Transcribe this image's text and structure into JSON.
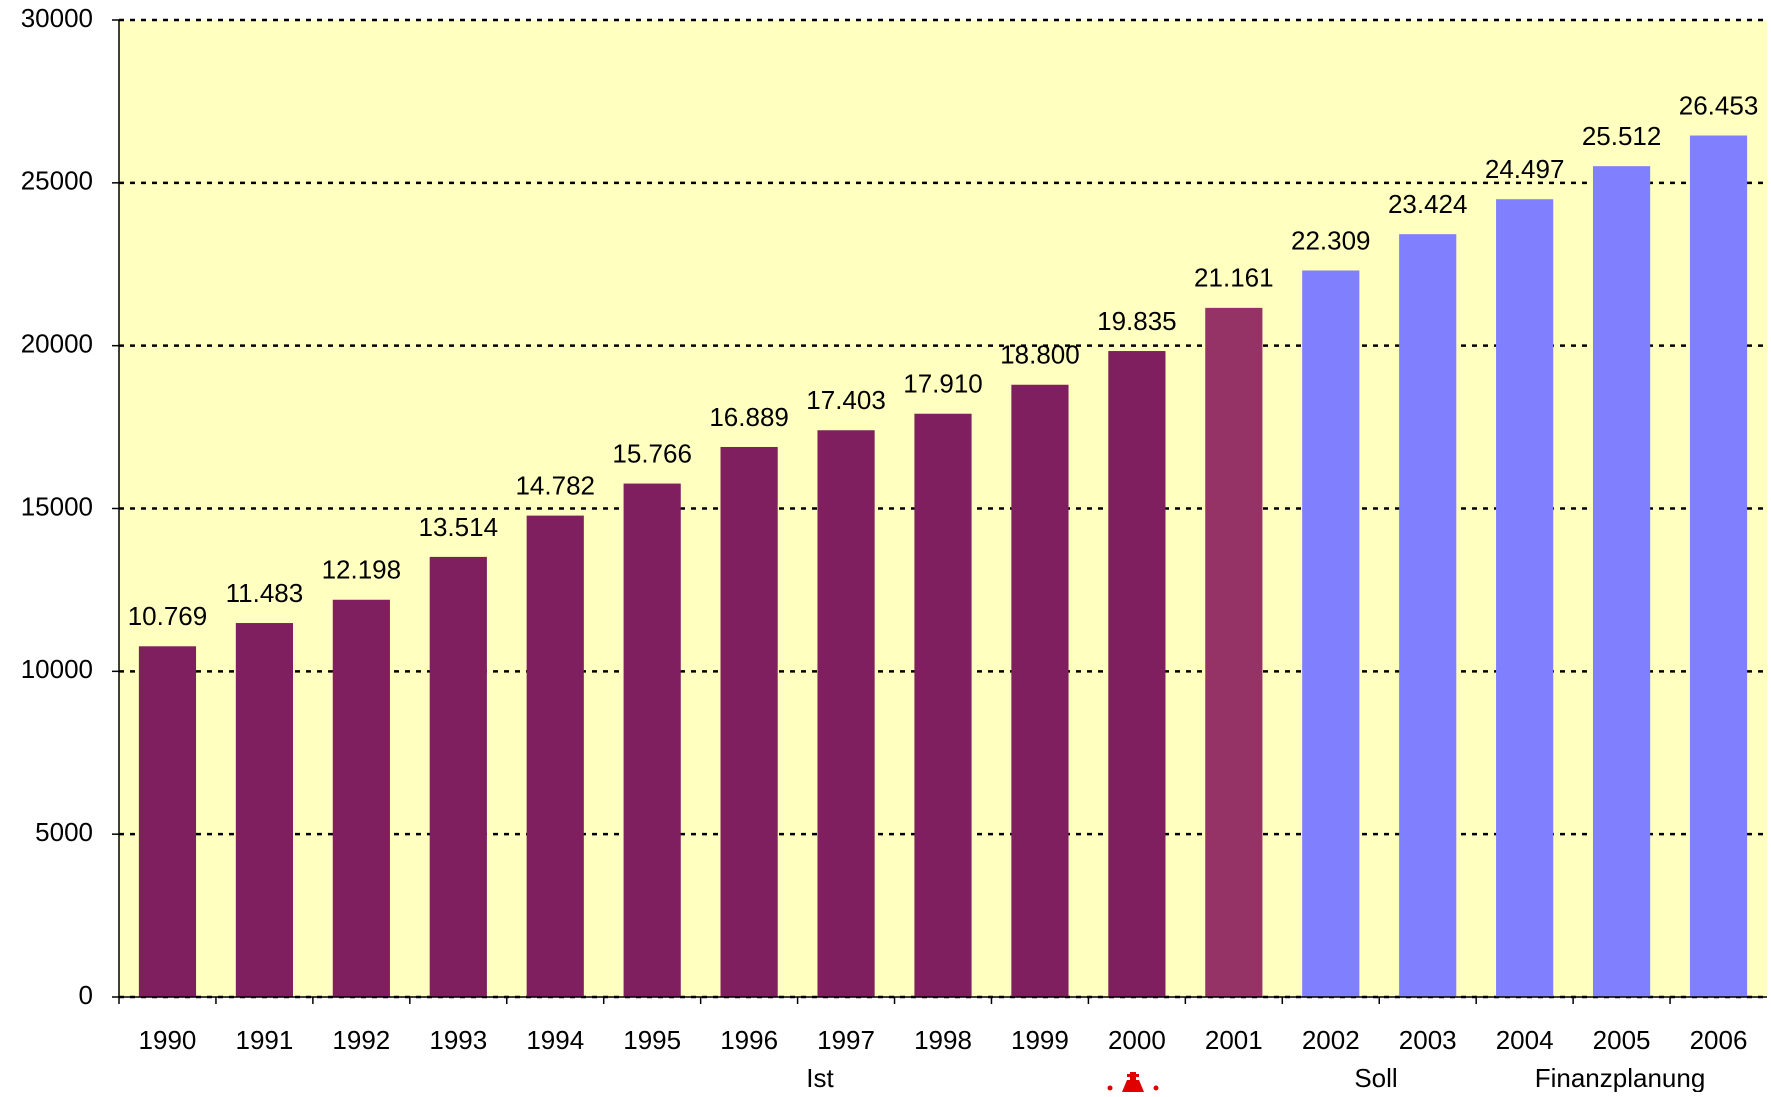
{
  "chart_data": {
    "type": "bar",
    "categories": [
      "1990",
      "1991",
      "1992",
      "1993",
      "1994",
      "1995",
      "1996",
      "1997",
      "1998",
      "1999",
      "2000",
      "2001",
      "2002",
      "2003",
      "2004",
      "2005",
      "2006"
    ],
    "values": [
      10769,
      11483,
      12198,
      13514,
      14782,
      15766,
      16889,
      17403,
      17910,
      18800,
      19835,
      21161,
      22309,
      23424,
      24497,
      25512,
      26453
    ],
    "value_labels": [
      "10.769",
      "11.483",
      "12.198",
      "13.514",
      "14.782",
      "15.766",
      "16.889",
      "17.403",
      "17.910",
      "18.800",
      "19.835",
      "21.161",
      "22.309",
      "23.424",
      "24.497",
      "25.512",
      "26.453"
    ],
    "colors": [
      "#7f1f5f",
      "#7f1f5f",
      "#7f1f5f",
      "#7f1f5f",
      "#7f1f5f",
      "#7f1f5f",
      "#7f1f5f",
      "#7f1f5f",
      "#7f1f5f",
      "#7f1f5f",
      "#7f1f5f",
      "#963366",
      "#8080ff",
      "#8080ff",
      "#8080ff",
      "#8080ff",
      "#8080ff"
    ],
    "ylim": [
      0,
      30000
    ],
    "yticks": [
      0,
      5000,
      10000,
      15000,
      20000,
      25000,
      30000
    ],
    "grid": true,
    "group_labels": [
      "Ist",
      "Soll",
      "Finanzplanung"
    ]
  }
}
